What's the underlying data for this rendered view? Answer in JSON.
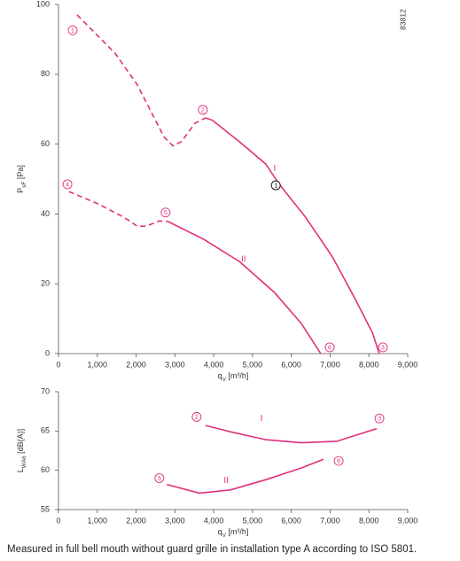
{
  "chart_data": [
    {
      "type": "line",
      "id_code": "83812",
      "ylabel": {
        "main": "P",
        "sub": "sF",
        "unit": " [Pa]"
      },
      "xlabel": {
        "main": "q",
        "sub": "V",
        "unit": " [m³/h]"
      },
      "xlim": [
        0,
        9000
      ],
      "ylim": [
        0,
        100
      ],
      "xticks": [
        0,
        {
          "value": 1000,
          "label": "1,000"
        },
        {
          "value": 2000,
          "label": "2,000"
        },
        {
          "value": 3000,
          "label": "3,000"
        },
        {
          "value": 4000,
          "label": "4,000"
        },
        {
          "value": 5000,
          "label": "5,000"
        },
        {
          "value": 6000,
          "label": "6,000"
        },
        {
          "value": 7000,
          "label": "7,000"
        },
        {
          "value": 8000,
          "label": "8,000"
        },
        {
          "value": 9000,
          "label": "9,000"
        }
      ],
      "yticks": [
        0,
        20,
        40,
        60,
        80,
        100
      ],
      "curves": [
        {
          "label": "I",
          "label_x": 5570,
          "label_y": 53,
          "color": "#e2307c",
          "segments": [
            {
              "dashed": true,
              "x": [
                480,
                1460,
                2030,
                2720,
                2950,
                3170,
                3520,
                3790
              ],
              "y": [
                97,
                86,
                77,
                62,
                59.5,
                60.7,
                66,
                67.5
              ]
            },
            {
              "dashed": false,
              "x": [
                3790,
                3970,
                4660,
                5340,
                5690,
                6370,
                7060,
                7630,
                8090,
                8270
              ],
              "y": [
                67.5,
                66.8,
                60.7,
                54.3,
                48.5,
                39,
                27.7,
                16,
                6,
                0
              ]
            }
          ]
        },
        {
          "label": "II",
          "label_x": 4770,
          "label_y": 27,
          "color": "#e2307c",
          "segments": [
            {
              "dashed": true,
              "x": [
                270,
                1000,
                1690,
                2030,
                2260,
                2600,
                2830
              ],
              "y": [
                46.4,
                43,
                39,
                36.5,
                36.5,
                38,
                37.8
              ]
            },
            {
              "dashed": false,
              "x": [
                2830,
                3750,
                4660,
                5570,
                6260,
                6760
              ],
              "y": [
                37.8,
                32.7,
                26.4,
                17.5,
                8.6,
                0
              ]
            }
          ]
        }
      ],
      "markers": [
        {
          "label": "1",
          "x": 365,
          "y": 92.6,
          "color": "#e2307c"
        },
        {
          "label": "2",
          "x": 3720,
          "y": 69.8,
          "color": "#e2307c"
        },
        {
          "label": "4",
          "x": 230,
          "y": 48.5,
          "color": "#e2307c"
        },
        {
          "label": "5",
          "x": 2760,
          "y": 40.4,
          "color": "#e2307c"
        },
        {
          "label": "6",
          "x": 6990,
          "y": 1.8,
          "color": "#e2307c"
        },
        {
          "label": "3",
          "x": 8360,
          "y": 1.8,
          "color": "#e2307c"
        },
        {
          "label": "1",
          "x": 5600,
          "y": 48.2,
          "color": "#000000"
        }
      ]
    },
    {
      "type": "line",
      "ylabel": {
        "main": "L",
        "sub": "WA6",
        "unit": " [dB(A)]"
      },
      "xlabel": {
        "main": "q",
        "sub": "V",
        "unit": " [m³/h]"
      },
      "xlim": [
        0,
        9000
      ],
      "ylim": [
        55,
        70
      ],
      "xticks": [
        0,
        {
          "value": 1000,
          "label": "1,000"
        },
        {
          "value": 2000,
          "label": "2,000"
        },
        {
          "value": 3000,
          "label": "3,000"
        },
        {
          "value": 4000,
          "label": "4,000"
        },
        {
          "value": 5000,
          "label": "5,000"
        },
        {
          "value": 6000,
          "label": "6,000"
        },
        {
          "value": 7000,
          "label": "7,000"
        },
        {
          "value": 8000,
          "label": "8,000"
        },
        {
          "value": 9000,
          "label": "9,000"
        }
      ],
      "yticks": [
        55,
        60,
        65,
        70
      ],
      "curves": [
        {
          "label": "I",
          "label_x": 5230,
          "label_y": 66.6,
          "color": "#e2307c",
          "segments": [
            {
              "dashed": false,
              "x": [
                3790,
                4430,
                5340,
                6260,
                7170,
                8200
              ],
              "y": [
                65.7,
                64.9,
                63.9,
                63.5,
                63.7,
                65.3
              ]
            }
          ]
        },
        {
          "label": "II",
          "label_x": 4320,
          "label_y": 58.7,
          "color": "#e2307c",
          "segments": [
            {
              "dashed": false,
              "x": [
                2790,
                3630,
                4430,
                5340,
                6260,
                6830
              ],
              "y": [
                58.2,
                57.1,
                57.5,
                58.8,
                60.3,
                61.4
              ]
            }
          ]
        }
      ],
      "markers": [
        {
          "label": "2",
          "x": 3560,
          "y": 66.8,
          "color": "#e2307c"
        },
        {
          "label": "3",
          "x": 8270,
          "y": 66.6,
          "color": "#e2307c"
        },
        {
          "label": "5",
          "x": 2600,
          "y": 59,
          "color": "#e2307c"
        },
        {
          "label": "6",
          "x": 7220,
          "y": 61.2,
          "color": "#e2307c"
        }
      ]
    }
  ],
  "footnote": "Measured in full bell mouth without guard grille in installation type A according to ISO 5801."
}
